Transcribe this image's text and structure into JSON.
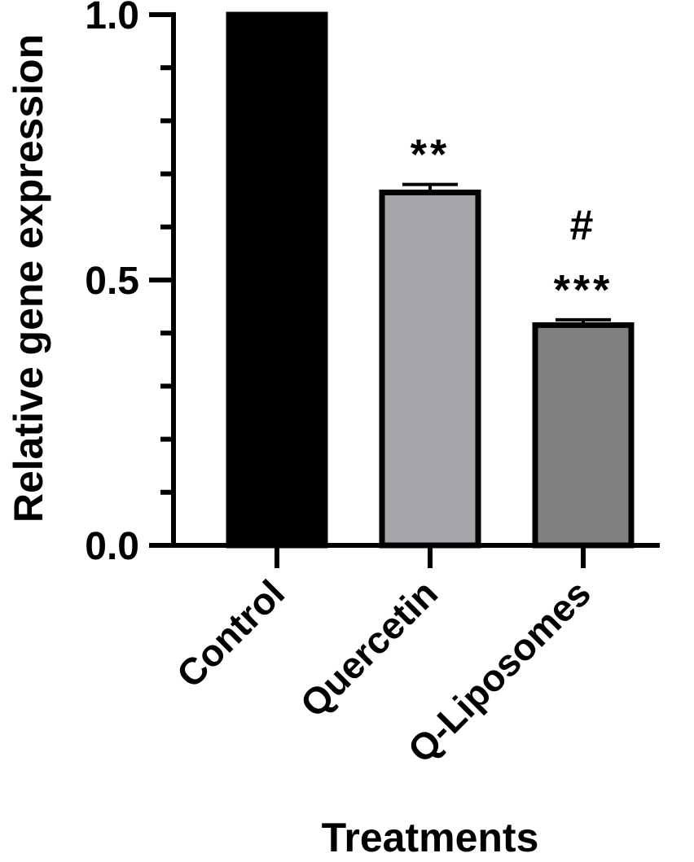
{
  "chart_data": {
    "type": "bar",
    "categories": [
      "Control",
      "Quercetin",
      "Q-Liposomes"
    ],
    "values": [
      1.0,
      0.665,
      0.415
    ],
    "errors": [
      0.0,
      0.015,
      0.01
    ],
    "colors": [
      "#000000",
      "#a6a6aa",
      "#808080"
    ],
    "annotations": [
      {
        "category": "Control",
        "lines": []
      },
      {
        "category": "Quercetin",
        "lines": [
          "**"
        ]
      },
      {
        "category": "Q-Liposomes",
        "lines": [
          "#",
          "***"
        ]
      }
    ],
    "ylim": [
      0,
      1.0
    ],
    "yticks": [
      {
        "value": 0.0,
        "label": "0.0"
      },
      {
        "value": 0.5,
        "label": "0.5"
      },
      {
        "value": 1.0,
        "label": "1.0"
      }
    ],
    "minor_tick_step": 0.1,
    "xlabel": "Treatments",
    "ylabel": "Relative gene expression",
    "grid": false
  }
}
